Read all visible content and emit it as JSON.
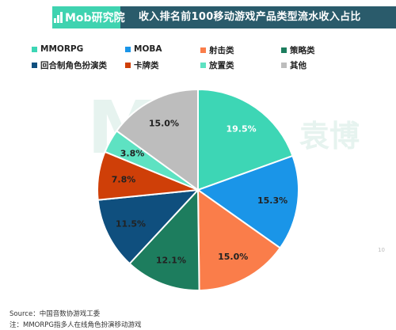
{
  "header": {
    "logo_text": "Mob研究院",
    "title": "收入排名前100移动游戏产品类型流水收入占比"
  },
  "watermark": {
    "text": "Mob",
    "sub": "袁博"
  },
  "footer": {
    "source": "Source：中国音数协游戏工委",
    "note": "注：MMORPG指多人在线角色扮演移动游戏",
    "page": "10"
  },
  "chart_data": {
    "type": "pie",
    "title": "收入排名前100移动游戏产品类型流水收入占比",
    "unit": "%",
    "start_angle_deg": 0,
    "direction": "clockwise",
    "slices": [
      {
        "name": "MMORPG",
        "value": 19.5,
        "label": "19.5%",
        "color": "#3dd6b5",
        "label_color": "#ffffff"
      },
      {
        "name": "MOBA",
        "value": 15.3,
        "label": "15.3%",
        "color": "#1a95e8",
        "label_color": "#222222"
      },
      {
        "name": "射击类",
        "value": 15.0,
        "label": "15.0%",
        "color": "#fa7d4a",
        "label_color": "#222222"
      },
      {
        "name": "策略类",
        "value": 12.1,
        "label": "12.1%",
        "color": "#1d7d5e",
        "label_color": "#222222"
      },
      {
        "name": "回合制角色扮演类",
        "value": 11.5,
        "label": "11.5%",
        "color": "#0f4f7e",
        "label_color": "#222222"
      },
      {
        "name": "卡牌类",
        "value": 7.8,
        "label": "7.8%",
        "color": "#cf3f08",
        "label_color": "#222222"
      },
      {
        "name": "放置类",
        "value": 3.8,
        "label": "3.8%",
        "color": "#5ee2c2",
        "label_color": "#222222"
      },
      {
        "name": "其他",
        "value": 15.0,
        "label": "15.0%",
        "color": "#bdbdbd",
        "label_color": "#222222"
      }
    ]
  }
}
